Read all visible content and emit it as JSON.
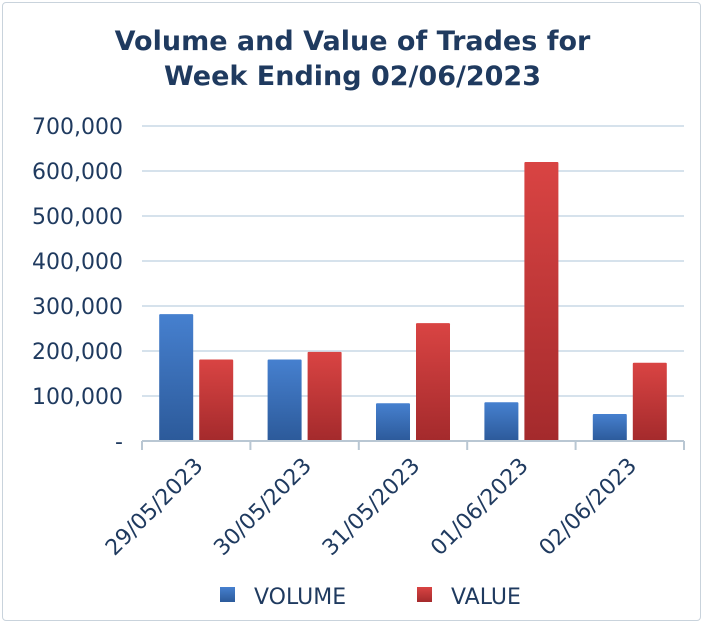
{
  "chart_data": {
    "type": "bar",
    "title_line1": "Volume and Value of Trades for",
    "title_line2": "Week Ending 02/06/2023",
    "categories": [
      "29/05/2023",
      "30/05/2023",
      "31/05/2023",
      "01/06/2023",
      "02/06/2023"
    ],
    "series": [
      {
        "name": "VOLUME",
        "values": [
          282000,
          181000,
          84000,
          86000,
          60000
        ]
      },
      {
        "name": "VALUE",
        "values": [
          181000,
          198000,
          262000,
          620000,
          174000
        ]
      }
    ],
    "y_ticks": [
      {
        "value": 0,
        "label": "-"
      },
      {
        "value": 100000,
        "label": "100,000"
      },
      {
        "value": 200000,
        "label": "200,000"
      },
      {
        "value": 300000,
        "label": "300,000"
      },
      {
        "value": 400000,
        "label": "400,000"
      },
      {
        "value": 500000,
        "label": "500,000"
      },
      {
        "value": 600000,
        "label": "600,000"
      },
      {
        "value": 700000,
        "label": "700,000"
      }
    ],
    "ylim": [
      0,
      700000
    ],
    "grid": true,
    "legend_position": "bottom",
    "colors": {
      "volume": "#3a72be",
      "value": "#c9383a",
      "text": "#1f3a5f",
      "grid": "#d6e2ec",
      "axis": "#b9c7d3"
    }
  }
}
